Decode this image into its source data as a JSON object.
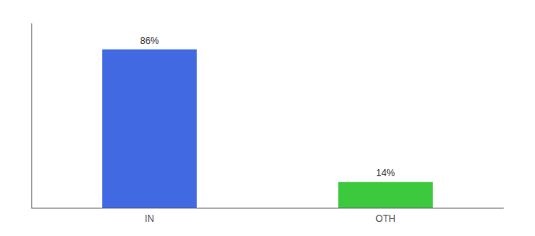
{
  "chart_data": {
    "type": "bar",
    "categories": [
      "IN",
      "OTH"
    ],
    "values": [
      86,
      14
    ],
    "value_labels": [
      "86%",
      "14%"
    ],
    "colors": [
      "#4169e1",
      "#3dc93d"
    ],
    "ylim": [
      0,
      100
    ],
    "data_labels": true,
    "tick_labels": "x",
    "grid": false
  }
}
